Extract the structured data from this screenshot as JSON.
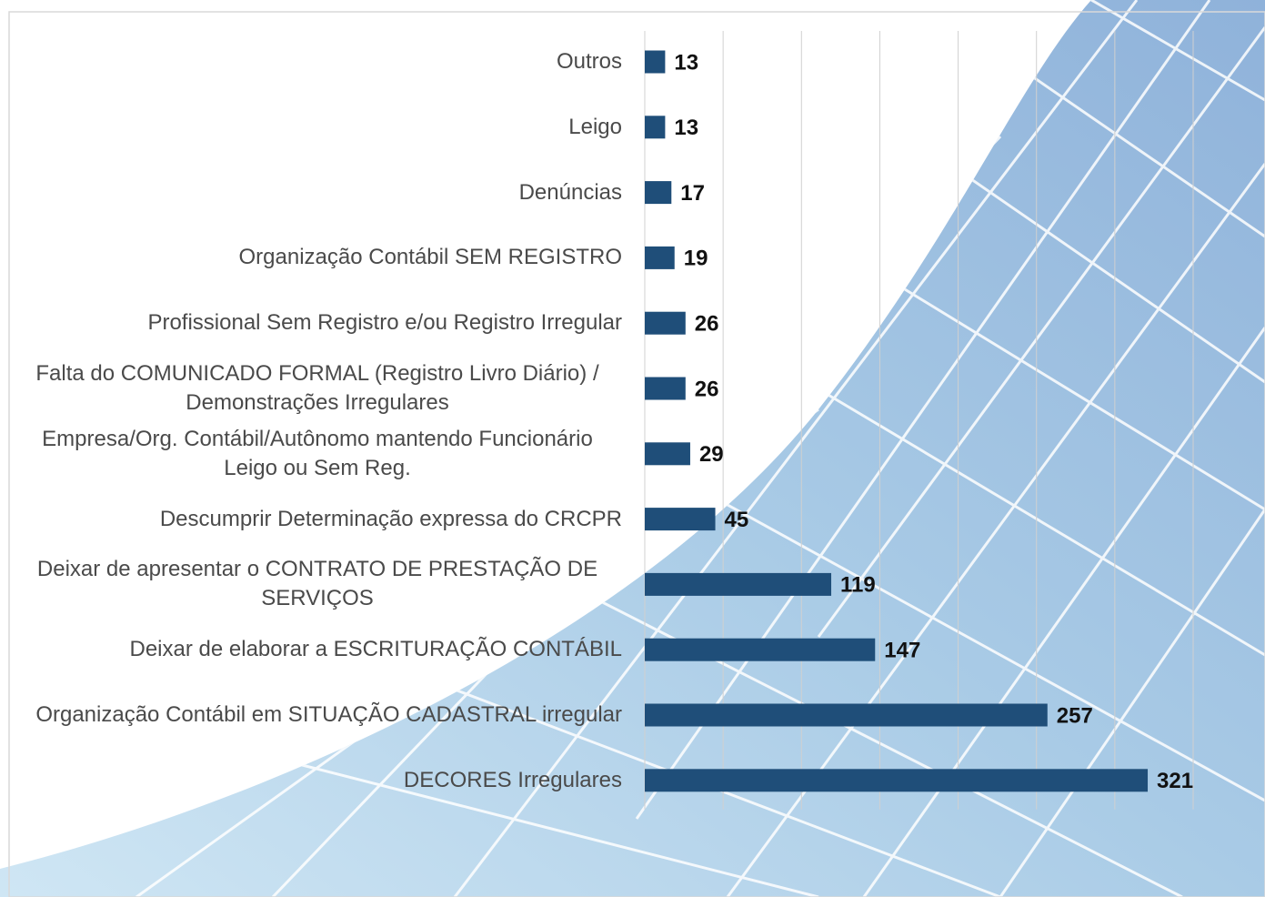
{
  "chart_data": {
    "type": "barh",
    "categories": [
      "Outros",
      "Leigo",
      "Denúncias",
      "Organização Contábil SEM REGISTRO",
      "Profissional Sem Registro e/ou Registro Irregular",
      "Falta do COMUNICADO FORMAL (Registro Livro Diário) / Demonstrações Irregulares",
      "Empresa/Org. Contábil/Autônomo mantendo Funcionário Leigo ou Sem Reg.",
      "Descumprir Determinação expressa do CRCPR",
      "Deixar de apresentar o CONTRATO DE PRESTAÇÃO DE SERVIÇOS",
      "Deixar de elaborar a ESCRITURAÇÃO CONTÁBIL",
      "Organização Contábil em SITUAÇÃO CADASTRAL irregular",
      "DECORES Irregulares"
    ],
    "values": [
      13,
      13,
      17,
      19,
      26,
      26,
      29,
      45,
      119,
      147,
      257,
      321
    ],
    "color": "#1f4e79",
    "xlim": [
      0,
      350
    ],
    "xticks": [
      0,
      50,
      100,
      150,
      200,
      250,
      300,
      350
    ],
    "grid": true
  }
}
